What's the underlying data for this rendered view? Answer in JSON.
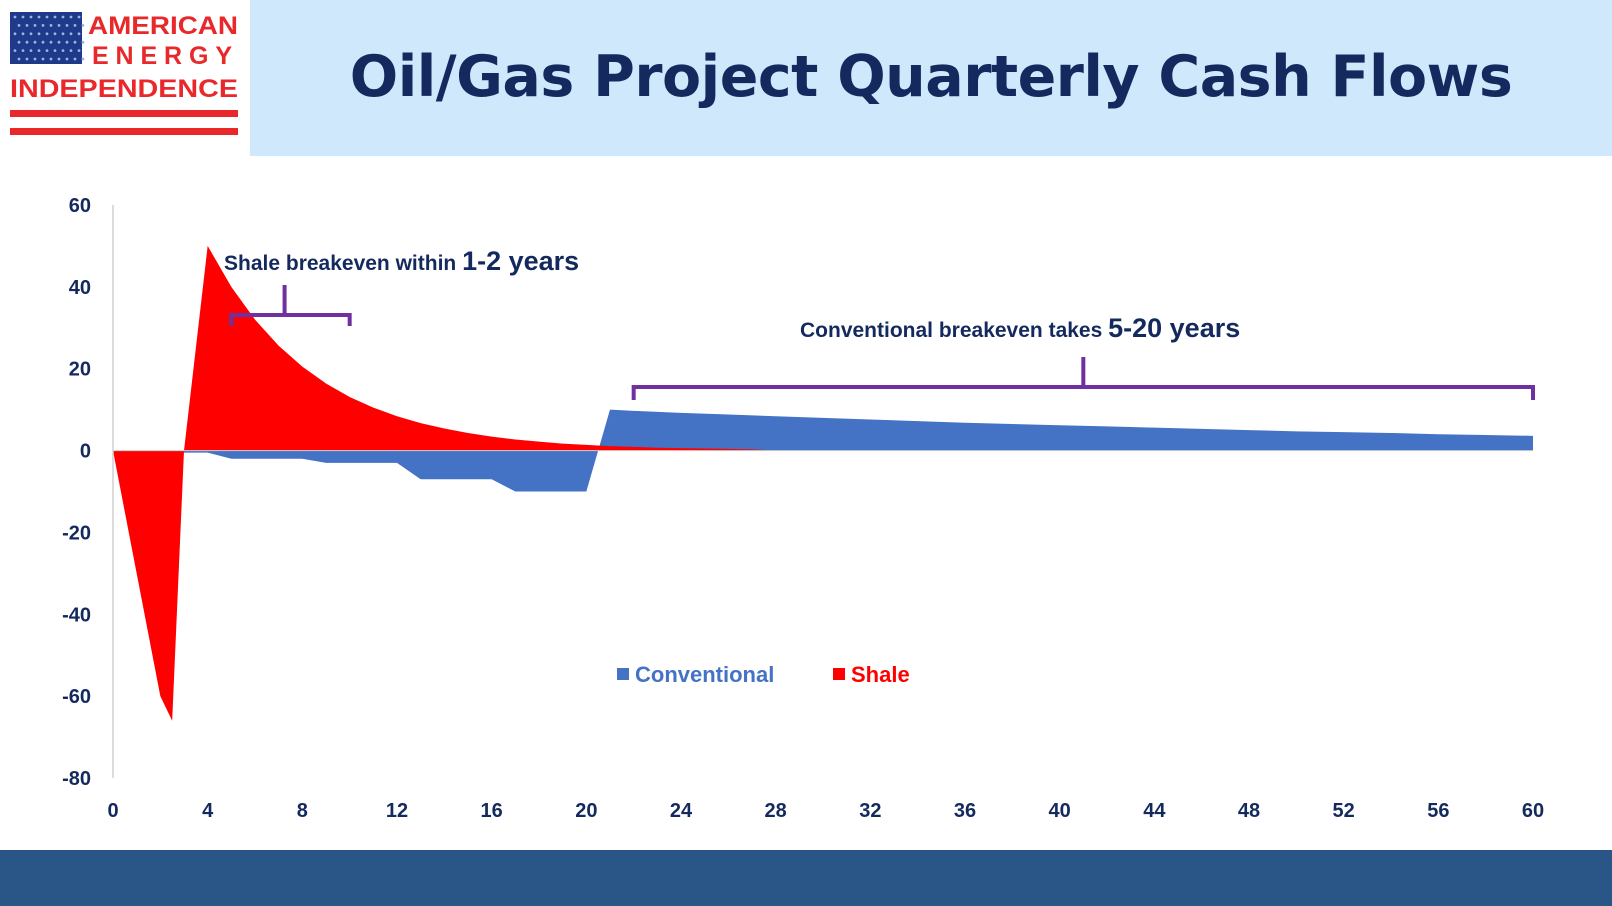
{
  "slide_title": "Oil/Gas Project Quarterly Cash Flows",
  "logo": {
    "line1": "AMERICAN",
    "line2": "ENERGY",
    "line3": "INDEPENDENCE"
  },
  "colors": {
    "conventional": "#4472c4",
    "shale": "#ff0000",
    "bracket": "#7030a0",
    "title": "#14295e",
    "header_band": "#cfe8fb",
    "footer_band": "#295687",
    "logo_red": "#e8282a",
    "logo_blue": "#1f3a8a"
  },
  "chart_data": {
    "type": "area",
    "title": "",
    "xlabel": "",
    "ylabel": "",
    "xlim": [
      0,
      60
    ],
    "ylim": [
      -80,
      60
    ],
    "xticks": [
      "0",
      "4",
      "8",
      "12",
      "16",
      "20",
      "24",
      "28",
      "32",
      "36",
      "40",
      "44",
      "48",
      "52",
      "56",
      "60"
    ],
    "yticks": [
      "60",
      "40",
      "20",
      "0",
      "-20",
      "-40",
      "-60",
      "-80"
    ],
    "grid": false,
    "legend": "center",
    "series": [
      {
        "name": "Conventional",
        "x": [
          0,
          1,
          2,
          3,
          4,
          5,
          6,
          7,
          8,
          9,
          10,
          11,
          12,
          13,
          14,
          15,
          16,
          17,
          18,
          19,
          20,
          21,
          22,
          24,
          26,
          28,
          30,
          32,
          34,
          36,
          38,
          40,
          42,
          44,
          46,
          48,
          50,
          52,
          54,
          56,
          58,
          60
        ],
        "y": [
          0,
          0,
          0,
          -0.5,
          -0.5,
          -2,
          -2,
          -2,
          -2,
          -3,
          -3,
          -3,
          -3,
          -7,
          -7,
          -7,
          -7,
          -10,
          -10,
          -10,
          -10,
          10,
          9.7,
          9.2,
          8.8,
          8.4,
          8.0,
          7.6,
          7.2,
          6.8,
          6.5,
          6.2,
          5.9,
          5.6,
          5.3,
          5.0,
          4.7,
          4.5,
          4.3,
          4.0,
          3.8,
          3.6
        ]
      },
      {
        "name": "Shale",
        "x": [
          0,
          1,
          2,
          2.5,
          3,
          4,
          5,
          6,
          7,
          8,
          9,
          10,
          11,
          12,
          13,
          14,
          15,
          16,
          17,
          18,
          19,
          20,
          21,
          22,
          23,
          24,
          25,
          26,
          27,
          28
        ],
        "y": [
          0,
          -30,
          -60,
          -66,
          0,
          50,
          40,
          32,
          25.6,
          20.5,
          16.4,
          13.1,
          10.5,
          8.4,
          6.7,
          5.4,
          4.3,
          3.4,
          2.7,
          2.2,
          1.7,
          1.4,
          1.1,
          0.9,
          0.7,
          0.6,
          0.5,
          0.4,
          0.3,
          0
        ]
      }
    ],
    "annotations": [
      {
        "text_small": "Shale breakeven within ",
        "text_big": "1-2 years",
        "bracket_x": [
          5,
          10
        ]
      },
      {
        "text_small": "Conventional breakeven takes ",
        "text_big": "5-20 years",
        "bracket_x": [
          22,
          60
        ]
      }
    ]
  }
}
